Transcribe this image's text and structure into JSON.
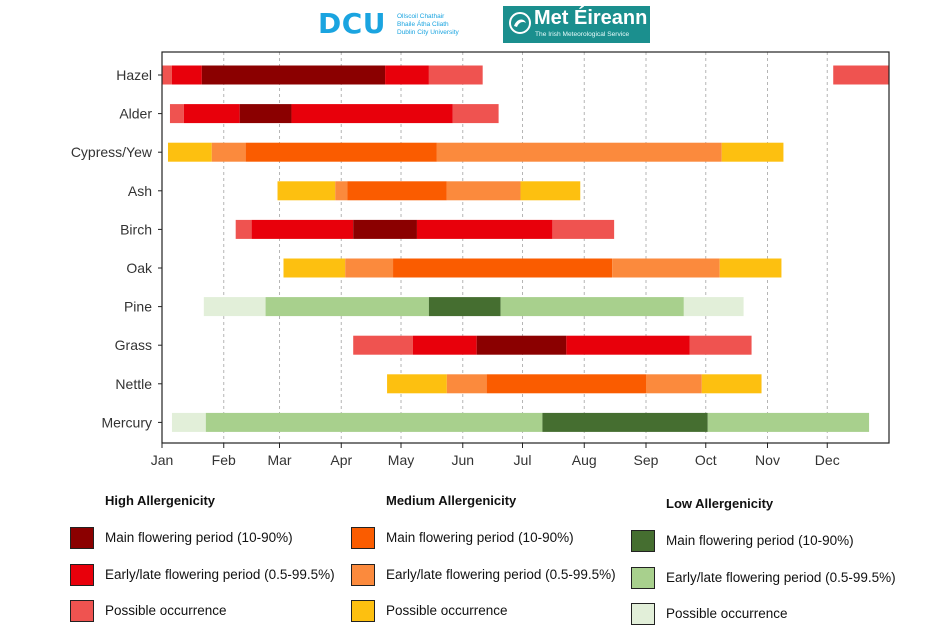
{
  "logos": {
    "dcu": {
      "name": "DCU",
      "subtitle_lines": [
        "Ollscoil Chathair",
        "Bhaile Átha Cliath",
        "Dublin City University"
      ]
    },
    "met": {
      "name": "Met Éireann",
      "tagline": "The Irish Meteorological Service"
    }
  },
  "colors": {
    "high": {
      "main": "#8b0000",
      "early_late": "#e8000b",
      "possible": "#ef5350"
    },
    "medium": {
      "main": "#fa5c00",
      "early_late": "#fb8a3d",
      "possible": "#fdc010"
    },
    "low": {
      "main": "#456e30",
      "early_late": "#a8d08d",
      "possible": "#e2efd9"
    }
  },
  "legend": [
    {
      "group": "high",
      "title": "High Allergenicity",
      "items": [
        {
          "key": "main",
          "label": "Main flowering period (10-90%)"
        },
        {
          "key": "early_late",
          "label": "Early/late flowering period (0.5-99.5%)"
        },
        {
          "key": "possible",
          "label": "Possible occurrence"
        }
      ]
    },
    {
      "group": "medium",
      "title": "Medium Allergenicity",
      "items": [
        {
          "key": "main",
          "label": "Main flowering period (10-90%)"
        },
        {
          "key": "early_late",
          "label": "Early/late flowering period (0.5-99.5%)"
        },
        {
          "key": "possible",
          "label": "Possible occurrence"
        }
      ]
    },
    {
      "group": "low",
      "title": "Low Allergenicity",
      "items": [
        {
          "key": "main",
          "label": "Main flowering period (10-90%)"
        },
        {
          "key": "early_late",
          "label": "Early/late flowering period (0.5-99.5%)"
        },
        {
          "key": "possible",
          "label": "Possible occurrence"
        }
      ]
    }
  ],
  "chart_data": {
    "type": "bar",
    "orientation": "horizontal-timeline",
    "x_ticks": [
      "Jan",
      "Feb",
      "Mar",
      "Apr",
      "May",
      "Jun",
      "Jul",
      "Aug",
      "Sep",
      "Oct",
      "Nov",
      "Dec"
    ],
    "x_tick_days": [
      1,
      32,
      60,
      91,
      121,
      152,
      182,
      213,
      244,
      274,
      305,
      335
    ],
    "xlim": [
      1,
      366
    ],
    "grid": "vertical dashed",
    "legend_position": "bottom",
    "categories": [
      "Hazel",
      "Alder",
      "Cypress/Yew",
      "Ash",
      "Birch",
      "Oak",
      "Pine",
      "Grass",
      "Nettle",
      "Mercury"
    ],
    "series": [
      {
        "category": "Hazel",
        "allergenicity": "high",
        "segments": [
          {
            "start": 1,
            "end": 6,
            "period": "possible"
          },
          {
            "start": 6,
            "end": 21,
            "period": "early_late"
          },
          {
            "start": 21,
            "end": 113,
            "period": "main"
          },
          {
            "start": 113,
            "end": 135,
            "period": "early_late"
          },
          {
            "start": 135,
            "end": 162,
            "period": "possible"
          },
          {
            "start": 338,
            "end": 366,
            "period": "possible"
          }
        ]
      },
      {
        "category": "Alder",
        "allergenicity": "high",
        "segments": [
          {
            "start": 5,
            "end": 12,
            "period": "possible"
          },
          {
            "start": 12,
            "end": 40,
            "period": "early_late"
          },
          {
            "start": 40,
            "end": 66,
            "period": "main"
          },
          {
            "start": 66,
            "end": 147,
            "period": "early_late"
          },
          {
            "start": 147,
            "end": 170,
            "period": "possible"
          }
        ]
      },
      {
        "category": "Cypress/Yew",
        "allergenicity": "medium",
        "segments": [
          {
            "start": 4,
            "end": 26,
            "period": "possible"
          },
          {
            "start": 26,
            "end": 43,
            "period": "early_late"
          },
          {
            "start": 43,
            "end": 139,
            "period": "main"
          },
          {
            "start": 139,
            "end": 282,
            "period": "early_late"
          },
          {
            "start": 282,
            "end": 313,
            "period": "possible"
          }
        ]
      },
      {
        "category": "Ash",
        "allergenicity": "medium",
        "segments": [
          {
            "start": 59,
            "end": 88,
            "period": "possible"
          },
          {
            "start": 88,
            "end": 94,
            "period": "early_late"
          },
          {
            "start": 94,
            "end": 144,
            "period": "main"
          },
          {
            "start": 144,
            "end": 181,
            "period": "early_late"
          },
          {
            "start": 181,
            "end": 211,
            "period": "possible"
          }
        ]
      },
      {
        "category": "Birch",
        "allergenicity": "high",
        "segments": [
          {
            "start": 38,
            "end": 46,
            "period": "possible"
          },
          {
            "start": 46,
            "end": 97,
            "period": "early_late"
          },
          {
            "start": 97,
            "end": 129,
            "period": "main"
          },
          {
            "start": 129,
            "end": 197,
            "period": "early_late"
          },
          {
            "start": 197,
            "end": 228,
            "period": "possible"
          }
        ]
      },
      {
        "category": "Oak",
        "allergenicity": "medium",
        "segments": [
          {
            "start": 62,
            "end": 93,
            "period": "possible"
          },
          {
            "start": 93,
            "end": 117,
            "period": "early_late"
          },
          {
            "start": 117,
            "end": 227,
            "period": "main"
          },
          {
            "start": 227,
            "end": 281,
            "period": "early_late"
          },
          {
            "start": 281,
            "end": 312,
            "period": "possible"
          }
        ]
      },
      {
        "category": "Pine",
        "allergenicity": "low",
        "segments": [
          {
            "start": 22,
            "end": 53,
            "period": "possible"
          },
          {
            "start": 53,
            "end": 135,
            "period": "early_late"
          },
          {
            "start": 135,
            "end": 171,
            "period": "main"
          },
          {
            "start": 171,
            "end": 263,
            "period": "early_late"
          },
          {
            "start": 263,
            "end": 293,
            "period": "possible"
          }
        ]
      },
      {
        "category": "Grass",
        "allergenicity": "high",
        "segments": [
          {
            "start": 97,
            "end": 127,
            "period": "possible"
          },
          {
            "start": 127,
            "end": 159,
            "period": "early_late"
          },
          {
            "start": 159,
            "end": 204,
            "period": "main"
          },
          {
            "start": 204,
            "end": 266,
            "period": "early_late"
          },
          {
            "start": 266,
            "end": 297,
            "period": "possible"
          }
        ]
      },
      {
        "category": "Nettle",
        "allergenicity": "medium",
        "segments": [
          {
            "start": 114,
            "end": 144,
            "period": "possible"
          },
          {
            "start": 144,
            "end": 164,
            "period": "early_late"
          },
          {
            "start": 164,
            "end": 244,
            "period": "main"
          },
          {
            "start": 244,
            "end": 272,
            "period": "early_late"
          },
          {
            "start": 272,
            "end": 302,
            "period": "possible"
          }
        ]
      },
      {
        "category": "Mercury",
        "allergenicity": "low",
        "segments": [
          {
            "start": 6,
            "end": 23,
            "period": "possible"
          },
          {
            "start": 23,
            "end": 192,
            "period": "early_late"
          },
          {
            "start": 192,
            "end": 275,
            "period": "main"
          },
          {
            "start": 275,
            "end": 356,
            "period": "early_late"
          }
        ]
      }
    ]
  }
}
